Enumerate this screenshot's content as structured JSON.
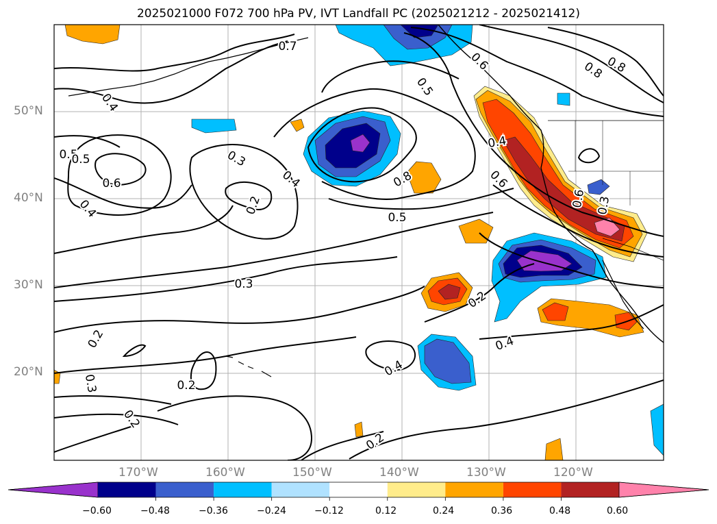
{
  "title": "2025021000 F072 700 hPa PV, IVT Landfall PC (2025021212 - 2025021412)",
  "map": {
    "lat_labels": [
      "50°N",
      "40°N",
      "30°N",
      "20°N"
    ],
    "lon_labels": [
      "170°W",
      "160°W",
      "150°W",
      "140°W",
      "130°W",
      "120°W"
    ],
    "contour_labels": [
      "0.4",
      "0.5",
      "0.6",
      "0.4",
      "0.5",
      "0.3",
      "0.2",
      "0.4",
      "0.8",
      "0.5",
      "0.3",
      "0.2",
      "0.2",
      "0.3",
      "0.2",
      "0.2",
      "0.4",
      "0.2",
      "0.4",
      "0.5",
      "0.4",
      "0.6",
      "0.8",
      "0.6",
      "0.8",
      "0.7",
      "0.6",
      "0.3"
    ]
  },
  "colorbar": {
    "ticks": [
      "−0.60",
      "−0.48",
      "−0.36",
      "−0.24",
      "−0.12",
      "0.12",
      "0.24",
      "0.36",
      "0.48",
      "0.60"
    ],
    "colors": [
      "#9932cc",
      "#00008b",
      "#3a5fcd",
      "#00bfff",
      "#b0e2ff",
      "#ffffff",
      "#ffec8b",
      "#ffa500",
      "#ff4500",
      "#b22222",
      "#ff82ab"
    ]
  }
}
